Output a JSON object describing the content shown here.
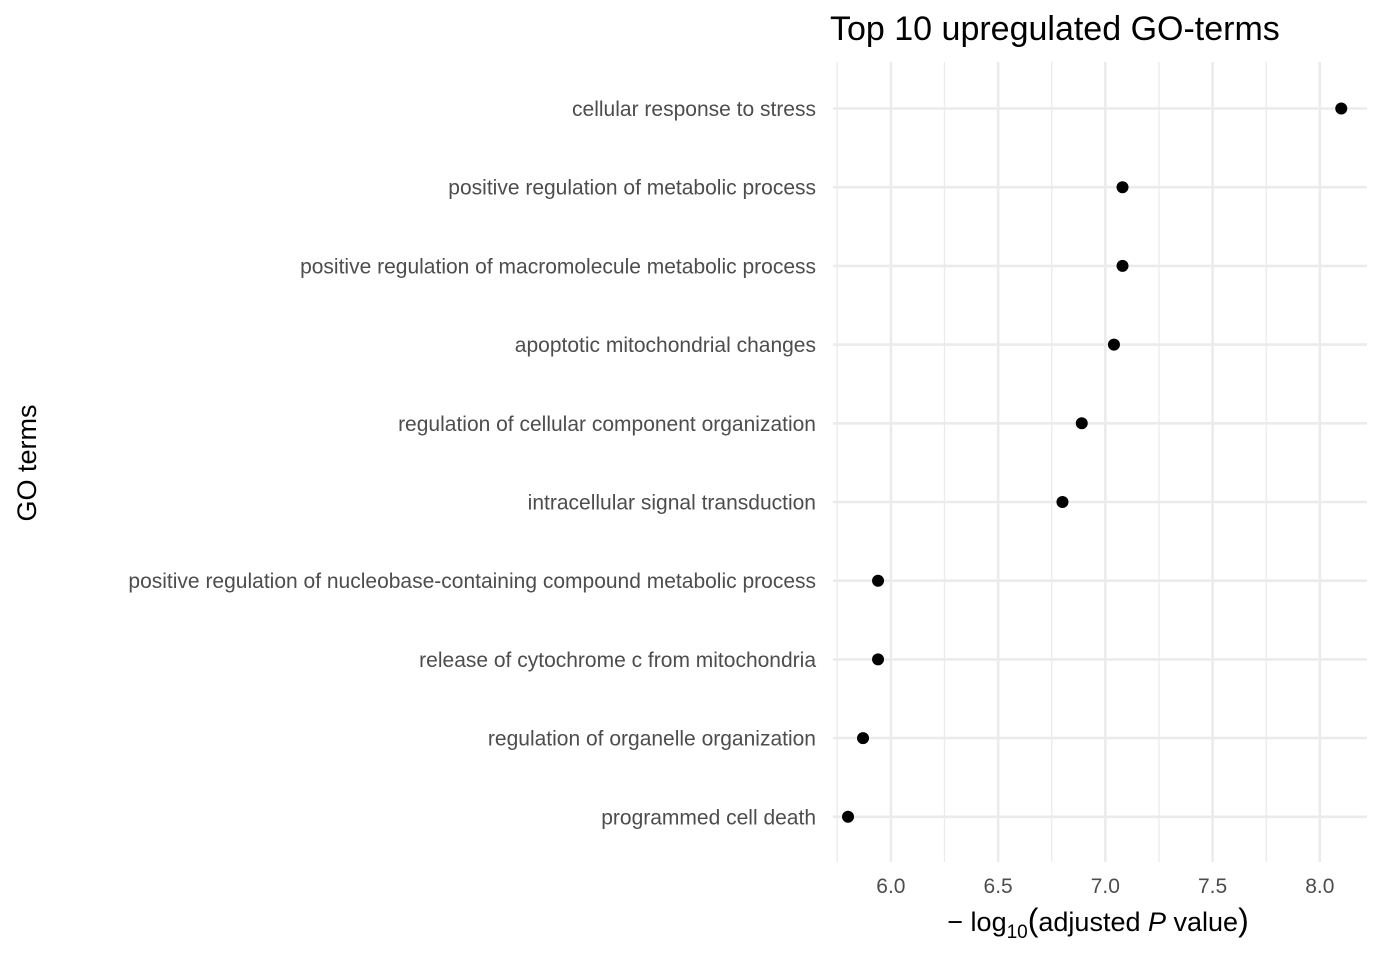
{
  "chart_data": {
    "type": "scatter",
    "title": "Top 10 upregulated GO-terms",
    "ylabel": "GO terms",
    "xlabel": {
      "prefix": "− log",
      "subscript": "10",
      "open": "(",
      "pre_italic": "adjusted ",
      "italic": "P",
      "post_italic": " value",
      "close": ")"
    },
    "xlim": [
      5.73,
      8.22
    ],
    "xticks": [
      "6.0",
      "6.5",
      "7.0",
      "7.5",
      "8.0"
    ],
    "categories": [
      "cellular response to stress",
      "positive regulation of metabolic process",
      "positive regulation of macromolecule metabolic process",
      "apoptotic mitochondrial changes",
      "regulation of cellular component organization",
      "intracellular signal transduction",
      "positive regulation of nucleobase-containing compound metabolic process",
      "release of cytochrome c from mitochondria",
      "regulation of organelle organization",
      "programmed cell death"
    ],
    "values": [
      8.1,
      7.08,
      7.08,
      7.04,
      6.89,
      6.8,
      5.94,
      5.94,
      5.87,
      5.8
    ],
    "point_color": "#000000",
    "grid": true
  }
}
